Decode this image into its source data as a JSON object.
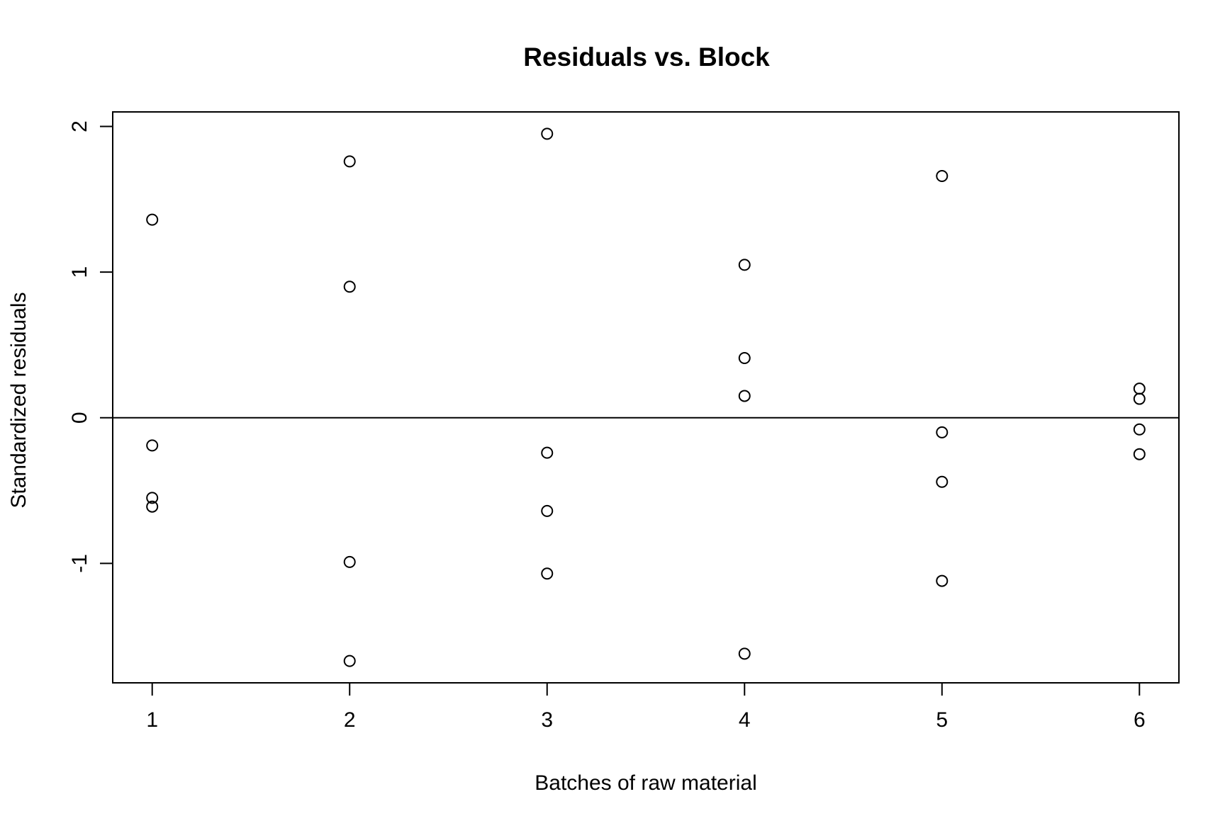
{
  "chart_data": {
    "type": "scatter",
    "title": "Residuals vs. Block",
    "xlabel": "Batches of raw material",
    "ylabel": "Standardized residuals",
    "xlim": [
      0.8,
      6.2
    ],
    "ylim": [
      -1.82,
      2.1
    ],
    "x_ticks": [
      1,
      2,
      3,
      4,
      5,
      6
    ],
    "y_ticks": [
      -1,
      0,
      1,
      2
    ],
    "reference_line": {
      "y": 0
    },
    "grid": false,
    "marker": "open-circle",
    "colors": {
      "points": "#000000",
      "axes": "#000000",
      "background": "#ffffff"
    },
    "points": [
      {
        "x": 1,
        "y": 1.36
      },
      {
        "x": 1,
        "y": -0.19
      },
      {
        "x": 1,
        "y": -0.55
      },
      {
        "x": 1,
        "y": -0.61
      },
      {
        "x": 2,
        "y": 1.76
      },
      {
        "x": 2,
        "y": 0.9
      },
      {
        "x": 2,
        "y": -0.99
      },
      {
        "x": 2,
        "y": -1.67
      },
      {
        "x": 3,
        "y": 1.95
      },
      {
        "x": 3,
        "y": -0.24
      },
      {
        "x": 3,
        "y": -0.64
      },
      {
        "x": 3,
        "y": -1.07
      },
      {
        "x": 4,
        "y": 1.05
      },
      {
        "x": 4,
        "y": 0.41
      },
      {
        "x": 4,
        "y": 0.15
      },
      {
        "x": 4,
        "y": -1.62
      },
      {
        "x": 5,
        "y": 1.66
      },
      {
        "x": 5,
        "y": -0.1
      },
      {
        "x": 5,
        "y": -0.44
      },
      {
        "x": 5,
        "y": -1.12
      },
      {
        "x": 6,
        "y": 0.2
      },
      {
        "x": 6,
        "y": 0.13
      },
      {
        "x": 6,
        "y": -0.08
      },
      {
        "x": 6,
        "y": -0.25
      }
    ]
  }
}
